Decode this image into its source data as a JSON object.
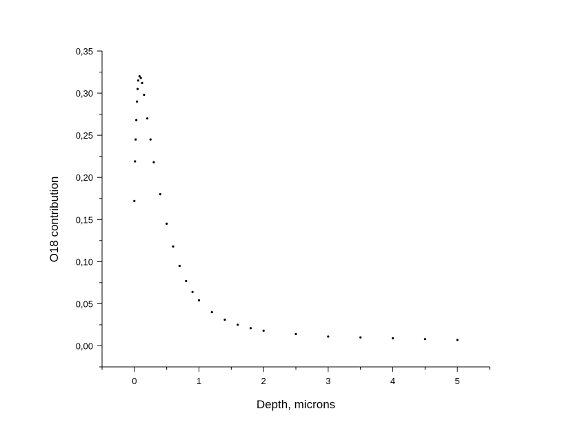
{
  "chart_data": {
    "type": "scatter",
    "title": "",
    "xlabel": "Depth, microns",
    "ylabel": "O18 contribution",
    "xlim": [
      -0.5,
      5.5
    ],
    "ylim": [
      -0.025,
      0.35
    ],
    "x_ticks": [
      0,
      1,
      2,
      3,
      4,
      5
    ],
    "x_tick_labels": [
      "0",
      "1",
      "2",
      "3",
      "4",
      "5"
    ],
    "y_ticks": [
      0.0,
      0.05,
      0.1,
      0.15,
      0.2,
      0.25,
      0.3,
      0.35
    ],
    "y_tick_labels": [
      "0,00",
      "0,05",
      "0,10",
      "0,15",
      "0,20",
      "0,25",
      "0,30",
      "0,35"
    ],
    "grid": false,
    "legend": "none",
    "marker_color": "#000000",
    "series": [
      {
        "x": [
          0.0,
          0.01,
          0.02,
          0.03,
          0.04,
          0.05,
          0.06,
          0.08,
          0.1,
          0.12,
          0.15,
          0.2,
          0.25,
          0.3,
          0.4,
          0.5,
          0.6,
          0.7,
          0.8,
          0.9,
          1.0,
          1.2,
          1.4,
          1.6,
          1.8,
          2.0,
          2.5,
          3.0,
          3.5,
          4.0,
          4.5,
          5.0
        ],
        "y": [
          0.172,
          0.219,
          0.245,
          0.268,
          0.29,
          0.305,
          0.315,
          0.32,
          0.318,
          0.312,
          0.298,
          0.27,
          0.245,
          0.218,
          0.18,
          0.145,
          0.118,
          0.095,
          0.077,
          0.064,
          0.054,
          0.04,
          0.031,
          0.025,
          0.021,
          0.018,
          0.014,
          0.011,
          0.01,
          0.009,
          0.008,
          0.007
        ]
      }
    ]
  }
}
